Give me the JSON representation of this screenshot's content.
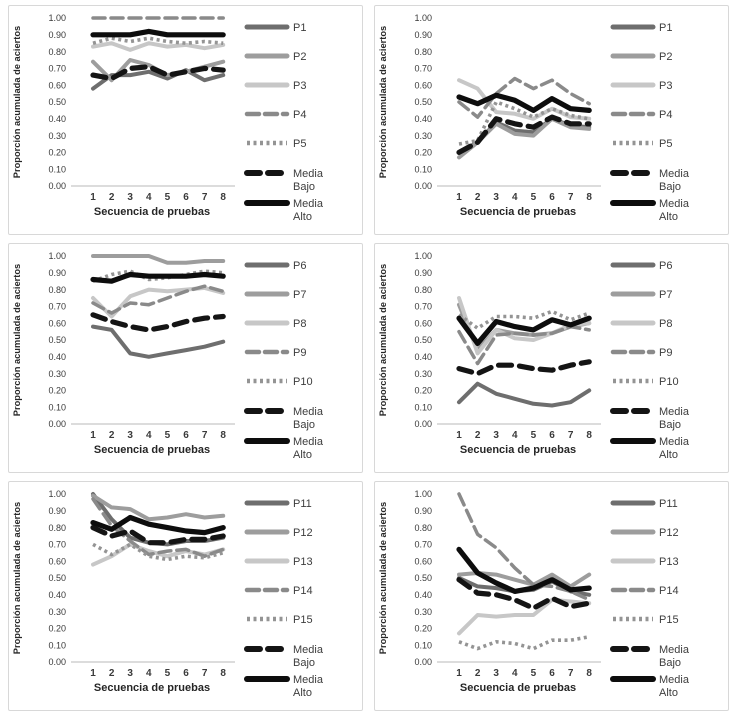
{
  "page": {
    "background": "#ffffff",
    "panel_border": "#d8d8d8"
  },
  "styles": {
    "p-dark": {
      "color": "#6e6e6e",
      "width": 4,
      "dash": ""
    },
    "p-medium": {
      "color": "#9d9d9d",
      "width": 4,
      "dash": ""
    },
    "p-light": {
      "color": "#c7c7c7",
      "width": 4,
      "dash": ""
    },
    "p-dashed": {
      "color": "#8a8a8a",
      "width": 3.5,
      "dash": "12 6"
    },
    "p-dotted": {
      "color": "#949494",
      "width": 3.6,
      "dash": "3 3.5",
      "cap": "butt"
    },
    "media-dash": {
      "color": "#141414",
      "width": 5.2,
      "dash": "13 8"
    },
    "media-solid": {
      "color": "#0d0d0d",
      "width": 5.2,
      "dash": ""
    }
  },
  "text_colors": {
    "ticks": "#3a3a3a",
    "titles": "#262626",
    "legend": "#3d3d3d",
    "axis_line": "#c8c8c8"
  },
  "chart_data": [
    {
      "type": "line",
      "title": "",
      "xlabel": "Secuencia de pruebas",
      "ylabel": "Proporción acumulada de aciertos",
      "x": [
        1,
        2,
        3,
        4,
        5,
        6,
        7,
        8
      ],
      "ylim": [
        0,
        1
      ],
      "yticks": [
        "0.00",
        "0.10",
        "0.20",
        "0.30",
        "0.40",
        "0.50",
        "0.60",
        "0.70",
        "0.80",
        "0.90",
        "1.00"
      ],
      "grid": false,
      "legend_position": "right",
      "series": [
        {
          "name": "P1",
          "style": "p-dark",
          "values": [
            0.58,
            0.66,
            0.66,
            0.68,
            0.64,
            0.69,
            0.63,
            0.66
          ]
        },
        {
          "name": "P2",
          "style": "p-medium",
          "values": [
            0.74,
            0.63,
            0.75,
            0.72,
            0.66,
            0.68,
            0.71,
            0.74
          ]
        },
        {
          "name": "P3",
          "style": "p-light",
          "values": [
            0.83,
            0.85,
            0.81,
            0.85,
            0.83,
            0.84,
            0.82,
            0.84
          ]
        },
        {
          "name": "P4",
          "style": "p-dashed",
          "values": [
            1.0,
            1.0,
            1.0,
            1.0,
            1.0,
            1.0,
            1.0,
            1.0
          ]
        },
        {
          "name": "P5",
          "style": "p-dotted",
          "values": [
            0.85,
            0.88,
            0.86,
            0.88,
            0.86,
            0.85,
            0.86,
            0.85
          ]
        },
        {
          "name": "Media Bajo",
          "label_lines": [
            "Media",
            "Bajo"
          ],
          "style": "media-dash",
          "values": [
            0.66,
            0.64,
            0.7,
            0.71,
            0.66,
            0.68,
            0.7,
            0.69
          ]
        },
        {
          "name": "Media Alto",
          "label_lines": [
            "Media",
            "Alto"
          ],
          "style": "media-solid",
          "values": [
            0.9,
            0.9,
            0.9,
            0.92,
            0.9,
            0.9,
            0.9,
            0.9
          ]
        }
      ]
    },
    {
      "type": "line",
      "title": "",
      "xlabel": "Secuencia de pruebas",
      "ylabel": "Proporción acumulada de aciertos",
      "x": [
        1,
        2,
        3,
        4,
        5,
        6,
        7,
        8
      ],
      "ylim": [
        0,
        1
      ],
      "yticks": [
        "0.00",
        "0.10",
        "0.20",
        "0.30",
        "0.40",
        "0.50",
        "0.60",
        "0.70",
        "0.80",
        "0.90",
        "1.00"
      ],
      "grid": false,
      "legend_position": "right",
      "series": [
        {
          "name": "P1",
          "style": "p-dark",
          "values": [
            0.2,
            0.26,
            0.38,
            0.33,
            0.32,
            0.4,
            0.36,
            0.35
          ]
        },
        {
          "name": "P2",
          "style": "p-medium",
          "values": [
            0.17,
            0.26,
            0.37,
            0.31,
            0.3,
            0.4,
            0.35,
            0.34
          ]
        },
        {
          "name": "P3",
          "style": "p-light",
          "values": [
            0.63,
            0.58,
            0.44,
            0.43,
            0.4,
            0.46,
            0.41,
            0.4
          ]
        },
        {
          "name": "P4",
          "style": "p-dashed",
          "values": [
            0.5,
            0.41,
            0.55,
            0.64,
            0.58,
            0.63,
            0.55,
            0.49
          ]
        },
        {
          "name": "P5",
          "style": "p-dotted",
          "values": [
            0.25,
            0.27,
            0.5,
            0.46,
            0.41,
            0.46,
            0.42,
            0.4
          ]
        },
        {
          "name": "Media Bajo",
          "label_lines": [
            "Media",
            "Bajo"
          ],
          "style": "media-dash",
          "values": [
            0.2,
            0.26,
            0.4,
            0.37,
            0.35,
            0.41,
            0.37,
            0.37
          ]
        },
        {
          "name": "Media Alto",
          "label_lines": [
            "Media",
            "Alto"
          ],
          "style": "media-solid",
          "values": [
            0.53,
            0.49,
            0.54,
            0.51,
            0.45,
            0.52,
            0.46,
            0.45
          ]
        }
      ]
    },
    {
      "type": "line",
      "title": "",
      "xlabel": "Secuencia de pruebas",
      "ylabel": "Proporción acumulada de aciertos",
      "x": [
        1,
        2,
        3,
        4,
        5,
        6,
        7,
        8
      ],
      "ylim": [
        0,
        1
      ],
      "yticks": [
        "0.00",
        "0.10",
        "0.20",
        "0.30",
        "0.40",
        "0.50",
        "0.60",
        "0.70",
        "0.80",
        "0.90",
        "1.00"
      ],
      "grid": false,
      "legend_position": "right",
      "series": [
        {
          "name": "P6",
          "style": "p-dark",
          "values": [
            0.58,
            0.56,
            0.42,
            0.4,
            0.42,
            0.44,
            0.46,
            0.49
          ]
        },
        {
          "name": "P7",
          "style": "p-medium",
          "values": [
            1.0,
            1.0,
            1.0,
            1.0,
            0.96,
            0.96,
            0.97,
            0.97
          ]
        },
        {
          "name": "P8",
          "style": "p-light",
          "values": [
            0.75,
            0.64,
            0.76,
            0.8,
            0.79,
            0.8,
            0.81,
            0.78
          ]
        },
        {
          "name": "P9",
          "style": "p-dashed",
          "values": [
            0.72,
            0.66,
            0.72,
            0.71,
            0.75,
            0.79,
            0.82,
            0.79
          ]
        },
        {
          "name": "P10",
          "style": "p-dotted",
          "values": [
            0.85,
            0.89,
            0.91,
            0.86,
            0.87,
            0.89,
            0.91,
            0.9
          ]
        },
        {
          "name": "Media Bajo",
          "label_lines": [
            "Media",
            "Bajo"
          ],
          "style": "media-dash",
          "values": [
            0.65,
            0.61,
            0.58,
            0.56,
            0.58,
            0.61,
            0.63,
            0.64
          ]
        },
        {
          "name": "Media Alto",
          "label_lines": [
            "Media",
            "Alto"
          ],
          "style": "media-solid",
          "values": [
            0.86,
            0.85,
            0.89,
            0.88,
            0.88,
            0.88,
            0.89,
            0.88
          ]
        }
      ]
    },
    {
      "type": "line",
      "title": "",
      "xlabel": "Secuencia de pruebas",
      "ylabel": "Proporción acumulada de aciertos",
      "x": [
        1,
        2,
        3,
        4,
        5,
        6,
        7,
        8
      ],
      "ylim": [
        0,
        1
      ],
      "yticks": [
        "0.00",
        "0.10",
        "0.20",
        "0.30",
        "0.40",
        "0.50",
        "0.60",
        "0.70",
        "0.80",
        "0.90",
        "1.00"
      ],
      "grid": false,
      "legend_position": "right",
      "series": [
        {
          "name": "P6",
          "style": "p-dark",
          "values": [
            0.13,
            0.24,
            0.18,
            0.15,
            0.12,
            0.11,
            0.13,
            0.2
          ]
        },
        {
          "name": "P7",
          "style": "p-medium",
          "values": [
            0.71,
            0.44,
            0.56,
            0.54,
            0.53,
            0.54,
            0.58,
            0.6
          ]
        },
        {
          "name": "P8",
          "style": "p-light",
          "values": [
            0.75,
            0.42,
            0.56,
            0.51,
            0.5,
            0.54,
            0.59,
            0.6
          ]
        },
        {
          "name": "P9",
          "style": "p-dashed",
          "values": [
            0.55,
            0.36,
            0.53,
            0.54,
            0.53,
            0.54,
            0.58,
            0.56
          ]
        },
        {
          "name": "P10",
          "style": "p-dotted",
          "values": [
            0.65,
            0.57,
            0.64,
            0.64,
            0.63,
            0.67,
            0.62,
            0.66
          ]
        },
        {
          "name": "Media Bajo",
          "label_lines": [
            "Media",
            "Bajo"
          ],
          "style": "media-dash",
          "values": [
            0.33,
            0.3,
            0.35,
            0.35,
            0.33,
            0.32,
            0.35,
            0.37
          ]
        },
        {
          "name": "Media Alto",
          "label_lines": [
            "Media",
            "Alto"
          ],
          "style": "media-solid",
          "values": [
            0.63,
            0.48,
            0.61,
            0.58,
            0.56,
            0.62,
            0.59,
            0.63
          ]
        }
      ]
    },
    {
      "type": "line",
      "title": "",
      "xlabel": "Secuencia de pruebas",
      "ylabel": "Proporción acumulada de aciertos",
      "x": [
        1,
        2,
        3,
        4,
        5,
        6,
        7,
        8
      ],
      "ylim": [
        0,
        1
      ],
      "yticks": [
        "0.00",
        "0.10",
        "0.20",
        "0.30",
        "0.40",
        "0.50",
        "0.60",
        "0.70",
        "0.80",
        "0.90",
        "1.00"
      ],
      "grid": false,
      "legend_position": "right",
      "series": [
        {
          "name": "P11",
          "style": "p-dark",
          "values": [
            1.0,
            0.85,
            0.74,
            0.71,
            0.7,
            0.72,
            0.72,
            0.74
          ]
        },
        {
          "name": "P12",
          "style": "p-medium",
          "values": [
            0.99,
            0.92,
            0.91,
            0.85,
            0.86,
            0.88,
            0.86,
            0.87
          ]
        },
        {
          "name": "P13",
          "style": "p-light",
          "values": [
            0.58,
            0.63,
            0.7,
            0.66,
            0.63,
            0.66,
            0.64,
            0.67
          ]
        },
        {
          "name": "P14",
          "style": "p-dashed",
          "values": [
            0.97,
            0.81,
            0.72,
            0.64,
            0.66,
            0.67,
            0.63,
            0.67
          ]
        },
        {
          "name": "P15",
          "style": "p-dotted",
          "values": [
            0.7,
            0.64,
            0.7,
            0.63,
            0.61,
            0.63,
            0.62,
            0.65
          ]
        },
        {
          "name": "Media Bajo",
          "label_lines": [
            "Media",
            "Bajo"
          ],
          "style": "media-dash",
          "values": [
            0.8,
            0.75,
            0.78,
            0.71,
            0.71,
            0.73,
            0.73,
            0.75
          ]
        },
        {
          "name": "Media Alto",
          "label_lines": [
            "Media",
            "Alto"
          ],
          "style": "media-solid",
          "values": [
            0.83,
            0.79,
            0.86,
            0.82,
            0.8,
            0.78,
            0.77,
            0.8
          ]
        }
      ]
    },
    {
      "type": "line",
      "title": "",
      "xlabel": "Secuencia de pruebas",
      "ylabel": "Proporción acumulada de aciertos",
      "x": [
        1,
        2,
        3,
        4,
        5,
        6,
        7,
        8
      ],
      "ylim": [
        0,
        1
      ],
      "yticks": [
        "0.00",
        "0.10",
        "0.20",
        "0.30",
        "0.40",
        "0.50",
        "0.60",
        "0.70",
        "0.80",
        "0.90",
        "1.00"
      ],
      "grid": false,
      "legend_position": "right",
      "series": [
        {
          "name": "P11",
          "style": "p-dark",
          "values": [
            0.5,
            0.45,
            0.44,
            0.42,
            0.43,
            0.48,
            0.42,
            0.4
          ]
        },
        {
          "name": "P12",
          "style": "p-medium",
          "values": [
            0.52,
            0.53,
            0.52,
            0.49,
            0.46,
            0.52,
            0.45,
            0.52
          ]
        },
        {
          "name": "P13",
          "style": "p-light",
          "values": [
            0.17,
            0.28,
            0.27,
            0.28,
            0.28,
            0.37,
            0.36,
            0.35
          ]
        },
        {
          "name": "P14",
          "style": "p-dashed",
          "values": [
            1.0,
            0.76,
            0.68,
            0.56,
            0.46,
            0.45,
            0.42,
            0.37
          ]
        },
        {
          "name": "P15",
          "style": "p-dotted",
          "values": [
            0.12,
            0.08,
            0.12,
            0.11,
            0.08,
            0.13,
            0.13,
            0.15
          ]
        },
        {
          "name": "Media Bajo",
          "label_lines": [
            "Media",
            "Bajo"
          ],
          "style": "media-dash",
          "values": [
            0.49,
            0.41,
            0.4,
            0.37,
            0.32,
            0.38,
            0.33,
            0.35
          ]
        },
        {
          "name": "Media Alto",
          "label_lines": [
            "Media",
            "Alto"
          ],
          "style": "media-solid",
          "values": [
            0.67,
            0.53,
            0.47,
            0.42,
            0.44,
            0.49,
            0.43,
            0.44
          ]
        }
      ]
    }
  ]
}
